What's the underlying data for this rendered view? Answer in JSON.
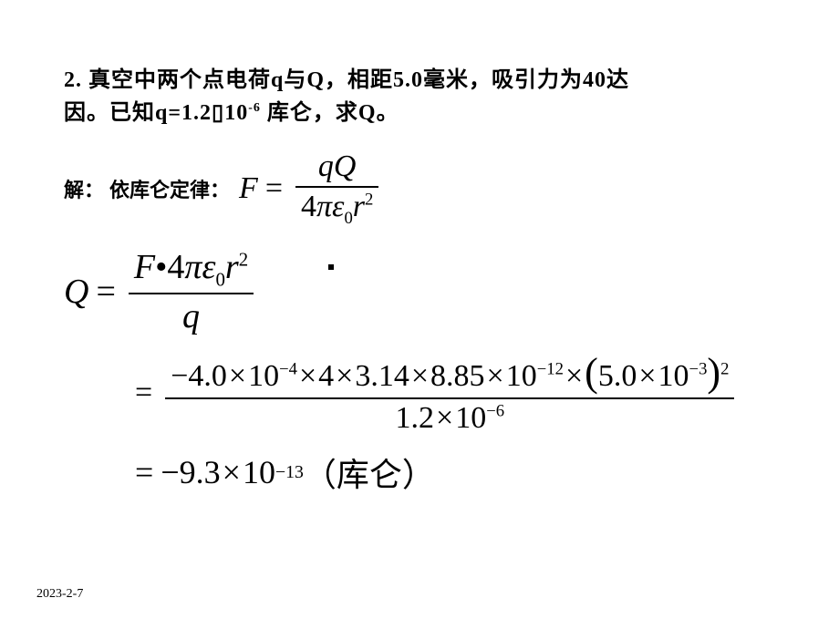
{
  "problem": {
    "line1": "2. 真空中两个点电荷q与Q，相距5.0毫米，吸引力为40达",
    "line2_pre": "因。已知q=1.2",
    "line2_box": "▯",
    "line2_base": "10",
    "line2_exp": "-6",
    "line2_post": " 库仑，求Q。"
  },
  "solution": {
    "label": "解：",
    "hint": "依库仑定律：",
    "eq1": {
      "lhs": "F",
      "num_a": "qQ",
      "den_pre": "4",
      "den_pi": "π",
      "den_eps": "ε",
      "den_eps_sub": "0",
      "den_r": "r",
      "den_r_sup": "2"
    },
    "eq2": {
      "lhs": "Q",
      "num_F": "F",
      "num_dot": "•",
      "num_4": "4",
      "num_pi": "π",
      "num_eps": "ε",
      "num_eps_sub": "0",
      "num_r": "r",
      "num_r_sup": "2",
      "den": "q"
    },
    "eq3": {
      "n1": "−4.0",
      "e1": "−4",
      "n2": "4",
      "n3": "3.14",
      "n4": "8.85",
      "e4": "−12",
      "n5": "5.0",
      "e5": "−3",
      "p5": "2",
      "d1": "1.2",
      "de1": "−6",
      "base": "10",
      "times": "×"
    },
    "eq4": {
      "val": "−9.3",
      "base": "10",
      "exp": "−13",
      "unit": "（库仑）"
    }
  },
  "footer": {
    "date": "2023-2-7"
  },
  "style": {
    "bg": "#ffffff",
    "text": "#000000",
    "problem_fontsize": 24,
    "math_fontsize": 34
  }
}
